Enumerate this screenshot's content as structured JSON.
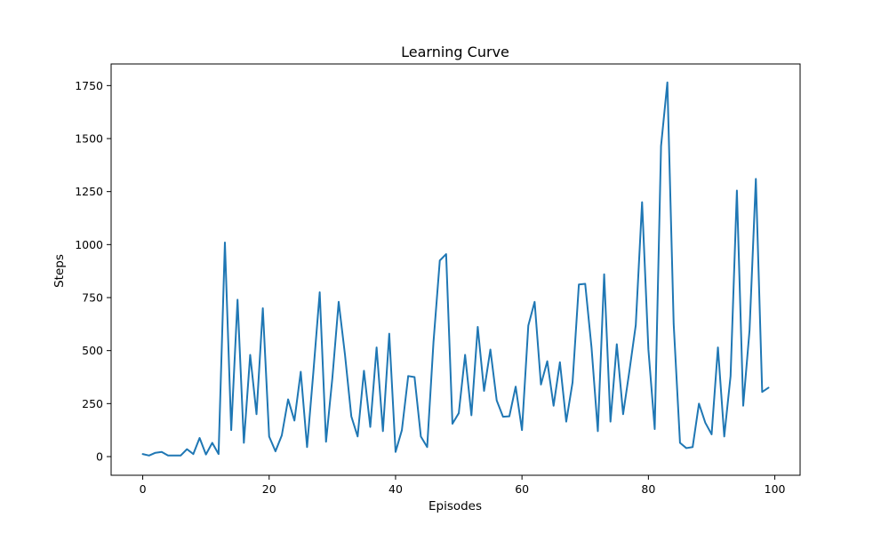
{
  "chart_data": {
    "type": "line",
    "title": "Learning Curve",
    "xlabel": "Episodes",
    "ylabel": "Steps",
    "xlim": [
      -5,
      104
    ],
    "ylim": [
      -88,
      1852
    ],
    "xticks": [
      0,
      20,
      40,
      60,
      80,
      100
    ],
    "yticks": [
      0,
      250,
      500,
      750,
      1000,
      1250,
      1500,
      1750
    ],
    "grid": false,
    "series": [
      {
        "color": "#1f77b4",
        "x": [
          0,
          1,
          2,
          3,
          4,
          5,
          6,
          7,
          8,
          9,
          10,
          11,
          12,
          13,
          14,
          15,
          16,
          17,
          18,
          19,
          20,
          21,
          22,
          23,
          24,
          25,
          26,
          27,
          28,
          29,
          30,
          31,
          32,
          33,
          34,
          35,
          36,
          37,
          38,
          39,
          40,
          41,
          42,
          43,
          44,
          45,
          46,
          47,
          48,
          49,
          50,
          51,
          52,
          53,
          54,
          55,
          56,
          57,
          58,
          59,
          60,
          61,
          62,
          63,
          64,
          65,
          66,
          67,
          68,
          69,
          70,
          71,
          72,
          73,
          74,
          75,
          76,
          77,
          78,
          79,
          80,
          81,
          82,
          83,
          84,
          85,
          86,
          87,
          88,
          89,
          90,
          91,
          92,
          93,
          94,
          95,
          96,
          97,
          98,
          99
        ],
        "values": [
          12,
          5,
          18,
          22,
          5,
          5,
          5,
          35,
          12,
          88,
          10,
          65,
          12,
          1010,
          125,
          740,
          65,
          480,
          200,
          700,
          95,
          25,
          100,
          270,
          170,
          400,
          45,
          400,
          775,
          70,
          370,
          730,
          480,
          190,
          95,
          405,
          140,
          515,
          120,
          580,
          22,
          125,
          380,
          375,
          95,
          45,
          540,
          925,
          955,
          155,
          205,
          480,
          195,
          612,
          310,
          505,
          265,
          188,
          190,
          330,
          125,
          618,
          730,
          340,
          450,
          240,
          445,
          165,
          350,
          812,
          815,
          515,
          120,
          860,
          165,
          530,
          200,
          405,
          620,
          1200,
          505,
          130,
          1465,
          1765,
          625,
          65,
          40,
          45,
          250,
          160,
          105,
          515,
          95,
          380,
          1255,
          240,
          595,
          1310,
          305,
          325
        ]
      }
    ]
  }
}
